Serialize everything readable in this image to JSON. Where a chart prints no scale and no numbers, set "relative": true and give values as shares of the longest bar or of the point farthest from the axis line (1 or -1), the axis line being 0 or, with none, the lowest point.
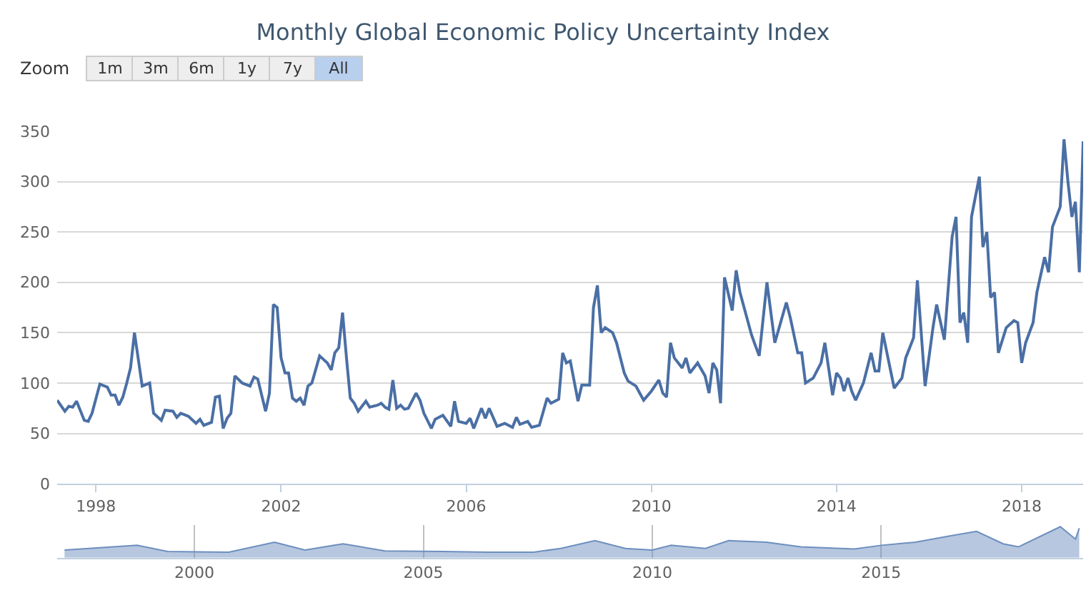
{
  "chart_data": [
    {
      "type": "line",
      "title": "Monthly Global Economic Policy Uncertainty Index",
      "annotations": [
        "Zoom",
        "1m",
        "3m",
        "6m",
        "1y",
        "7y",
        "All"
      ],
      "x": [
        "1997-03",
        "1997-05",
        "1997-06",
        "1997-07",
        "1997-08",
        "1997-10",
        "1997-11",
        "1997-12",
        "1998-02",
        "1998-04",
        "1998-05",
        "1998-06",
        "1998-07",
        "1998-08",
        "1998-09",
        "1998-10",
        "1998-11",
        "1999-01",
        "1999-03",
        "1999-04",
        "1999-06",
        "1999-07",
        "1999-09",
        "1999-10",
        "1999-11",
        "2000-01",
        "2000-03",
        "2000-04",
        "2000-05",
        "2000-07",
        "2000-08",
        "2000-09",
        "2000-10",
        "2000-11",
        "2000-12",
        "2001-01",
        "2001-03",
        "2001-05",
        "2001-06",
        "2001-07",
        "2001-09",
        "2001-10",
        "2001-11",
        "2001-12",
        "2002-01",
        "2002-02",
        "2002-03",
        "2002-04",
        "2002-05",
        "2002-06",
        "2002-07",
        "2002-08",
        "2002-09",
        "2002-11",
        "2003-01",
        "2003-02",
        "2003-03",
        "2003-04",
        "2003-05",
        "2003-06",
        "2003-07",
        "2003-08",
        "2003-09",
        "2003-11",
        "2003-12",
        "2004-02",
        "2004-03",
        "2004-04",
        "2004-05",
        "2004-06",
        "2004-07",
        "2004-08",
        "2004-09",
        "2004-10",
        "2004-12",
        "2005-01",
        "2005-02",
        "2005-04",
        "2005-05",
        "2005-07",
        "2005-09",
        "2005-10",
        "2005-11",
        "2006-01",
        "2006-02",
        "2006-03",
        "2006-05",
        "2006-06",
        "2006-07",
        "2006-09",
        "2006-11",
        "2007-01",
        "2007-02",
        "2007-03",
        "2007-05",
        "2007-06",
        "2007-08",
        "2007-10",
        "2007-11",
        "2008-01",
        "2008-02",
        "2008-03",
        "2008-04",
        "2008-06",
        "2008-07",
        "2008-09",
        "2008-10",
        "2008-11",
        "2008-12",
        "2009-01",
        "2009-03",
        "2009-04",
        "2009-06",
        "2009-07",
        "2009-09",
        "2009-10",
        "2009-11",
        "2010-01",
        "2010-03",
        "2010-04",
        "2010-05",
        "2010-06",
        "2010-07",
        "2010-09",
        "2010-10",
        "2010-11",
        "2011-01",
        "2011-03",
        "2011-04",
        "2011-05",
        "2011-06",
        "2011-07",
        "2011-08",
        "2011-10",
        "2011-11",
        "2011-12",
        "2012-03",
        "2012-04",
        "2012-05",
        "2012-07",
        "2012-09",
        "2012-12",
        "2013-01",
        "2013-03",
        "2013-04",
        "2013-05",
        "2013-07",
        "2013-09",
        "2013-10",
        "2013-12",
        "2014-01",
        "2014-02",
        "2014-03",
        "2014-04",
        "2014-05",
        "2014-06",
        "2014-08",
        "2014-10",
        "2014-11",
        "2014-12",
        "2015-01",
        "2015-04",
        "2015-06",
        "2015-07",
        "2015-09",
        "2015-10",
        "2015-12",
        "2016-02",
        "2016-03",
        "2016-05",
        "2016-07",
        "2016-08",
        "2016-09",
        "2016-10",
        "2016-11",
        "2016-12",
        "2017-02",
        "2017-03",
        "2017-04",
        "2017-05",
        "2017-06",
        "2017-07",
        "2017-09",
        "2017-11",
        "2017-12",
        "2018-01",
        "2018-02",
        "2018-04",
        "2018-05",
        "2018-07",
        "2018-08",
        "2018-09",
        "2018-11",
        "2018-12",
        "2019-01",
        "2019-02",
        "2019-03",
        "2019-04",
        "2019-05"
      ],
      "series": [
        {
          "color": "#4a6fa5",
          "values": [
            83,
            72,
            77,
            76,
            82,
            63,
            62,
            70,
            99,
            96,
            88,
            88,
            78,
            86,
            100,
            115,
            150,
            97,
            100,
            70,
            63,
            73,
            72,
            66,
            70,
            67,
            60,
            64,
            58,
            61,
            86,
            87,
            55,
            65,
            70,
            107,
            100,
            97,
            106,
            104,
            72,
            90,
            178,
            175,
            125,
            110,
            110,
            85,
            82,
            85,
            78,
            97,
            100,
            127,
            120,
            113,
            130,
            135,
            170,
            125,
            85,
            80,
            72,
            82,
            76,
            78,
            80,
            76,
            74,
            103,
            75,
            78,
            74,
            75,
            90,
            83,
            70,
            55,
            64,
            68,
            57,
            82,
            62,
            60,
            65,
            55,
            75,
            65,
            75,
            57,
            60,
            56,
            66,
            59,
            62,
            56,
            58,
            85,
            80,
            84,
            130,
            120,
            122,
            82,
            98,
            98,
            175,
            197,
            150,
            155,
            150,
            140,
            110,
            102,
            97,
            90,
            83,
            92,
            103,
            90,
            86,
            140,
            125,
            115,
            125,
            110,
            120,
            107,
            90,
            120,
            113,
            80,
            205,
            172,
            212,
            190,
            148,
            137,
            127,
            200,
            140,
            180,
            165,
            130,
            130,
            100,
            105,
            120,
            140,
            88,
            110,
            105,
            92,
            105,
            92,
            83,
            100,
            130,
            112,
            112,
            150,
            95,
            105,
            125,
            145,
            202,
            97,
            155,
            178,
            143,
            245,
            265,
            160,
            170,
            140,
            265,
            305,
            235,
            250,
            185,
            190,
            130,
            155,
            162,
            160,
            120,
            140,
            160,
            190,
            225,
            210,
            255,
            275,
            342,
            300,
            265,
            280,
            210,
            340
          ]
        }
      ],
      "xlim": [
        "1997-03",
        "2019-05"
      ],
      "xticks": [
        "1998",
        "2002",
        "2006",
        "2010",
        "2014",
        "2018"
      ],
      "ylim": [
        0,
        350
      ],
      "yticks": [
        0,
        50,
        100,
        150,
        200,
        250,
        300,
        350
      ],
      "grid": "y",
      "marker": "none",
      "line_style": "solid"
    },
    {
      "type": "area",
      "relative": true,
      "x": [
        "1997-03",
        "1998-10",
        "1999-06",
        "2000-10",
        "2001-10",
        "2002-06",
        "2003-04",
        "2004-03",
        "2005-06",
        "2006-06",
        "2007-06",
        "2008-01",
        "2008-10",
        "2009-06",
        "2010-01",
        "2010-06",
        "2011-03",
        "2011-09",
        "2012-07",
        "2013-04",
        "2014-06",
        "2015-01",
        "2015-10",
        "2016-07",
        "2017-02",
        "2017-09",
        "2018-01",
        "2018-12",
        "2019-04",
        "2019-05"
      ],
      "series": [
        {
          "color": "#6d8fbf",
          "values": [
            0.25,
            0.4,
            0.2,
            0.18,
            0.5,
            0.25,
            0.45,
            0.22,
            0.2,
            0.18,
            0.18,
            0.3,
            0.55,
            0.3,
            0.25,
            0.4,
            0.3,
            0.55,
            0.5,
            0.35,
            0.28,
            0.4,
            0.5,
            0.7,
            0.85,
            0.45,
            0.35,
            1.0,
            0.6,
            0.95
          ]
        }
      ],
      "xlim": [
        "1997-01",
        "2019-06"
      ],
      "xticks": [
        "2000",
        "2005",
        "2010",
        "2015"
      ],
      "tick_labels": "x",
      "grid": "x"
    }
  ]
}
